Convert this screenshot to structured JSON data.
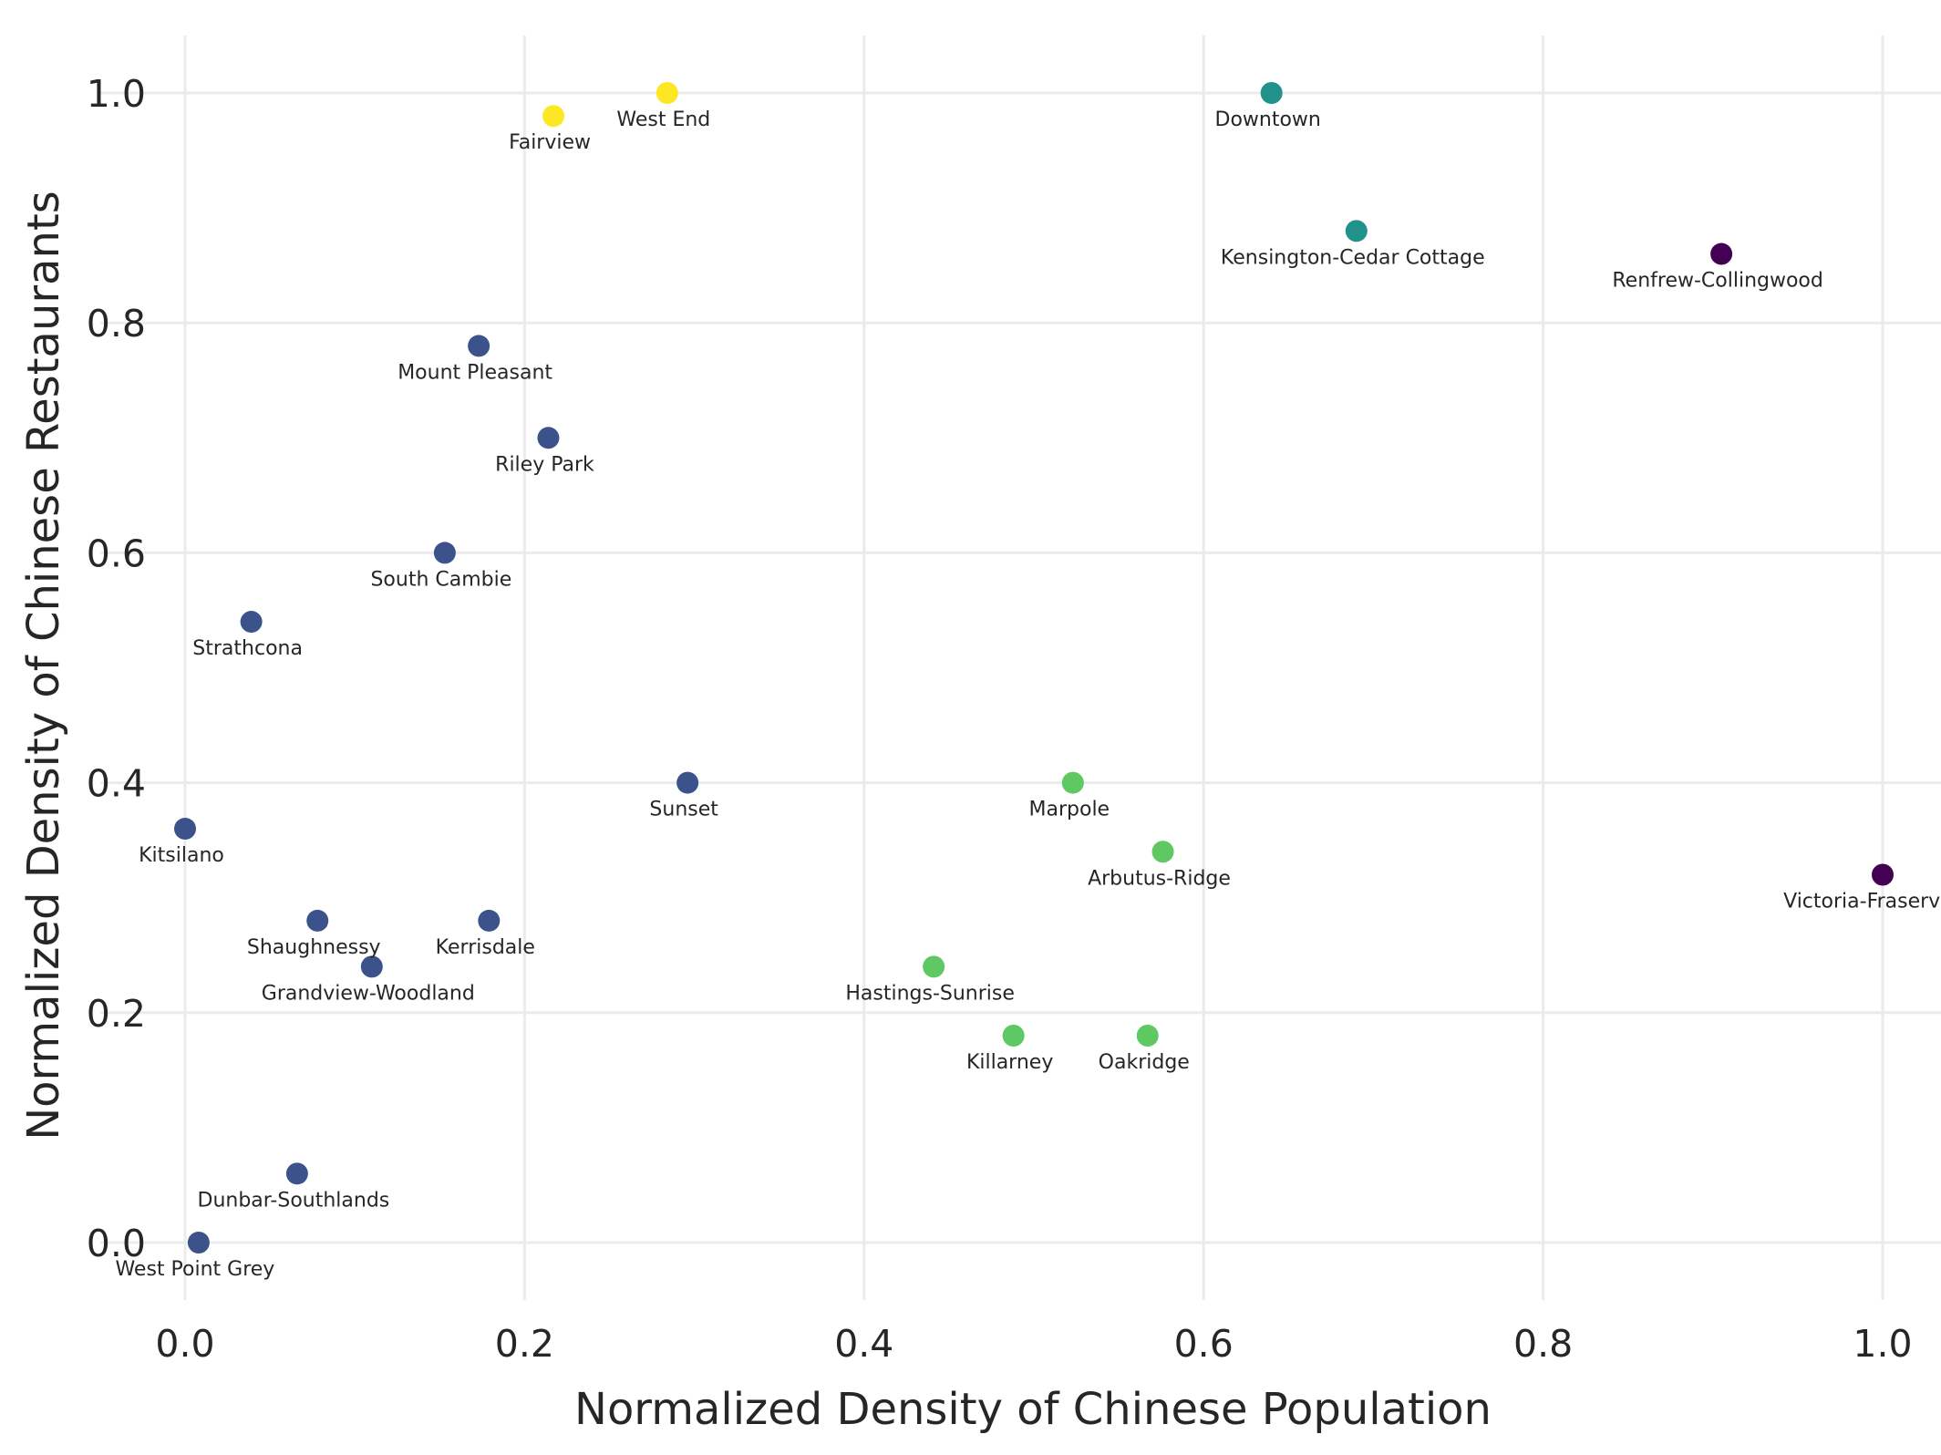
{
  "chart_data": {
    "type": "scatter",
    "title": "",
    "xlabel": "Normalized Density of Chinese Population",
    "ylabel": "Normalized Density of Chinese Restaurants",
    "xlim": [
      -0.05,
      1.05
    ],
    "ylim": [
      -0.05,
      1.05
    ],
    "xticks": [
      0.0,
      0.2,
      0.4,
      0.6,
      0.8,
      1.0
    ],
    "yticks": [
      0.0,
      0.2,
      0.4,
      0.6,
      0.8,
      1.0
    ],
    "xtick_labels": [
      "0.0",
      "0.2",
      "0.4",
      "0.6",
      "0.8",
      "1.0"
    ],
    "ytick_labels": [
      "0.0",
      "0.2",
      "0.4",
      "0.6",
      "0.8",
      "1.0"
    ],
    "grid": true,
    "legend": "none",
    "cluster_colors": [
      "#440154",
      "#3b528b",
      "#21918c",
      "#5ec962",
      "#fde725"
    ],
    "points": [
      {
        "label": "West End",
        "x": 0.284,
        "y": 1.0,
        "cluster": 4
      },
      {
        "label": "Fairview",
        "x": 0.217,
        "y": 0.98,
        "cluster": 4
      },
      {
        "label": "Downtown",
        "x": 0.64,
        "y": 1.0,
        "cluster": 2
      },
      {
        "label": "Kensington-Cedar Cottage",
        "x": 0.69,
        "y": 0.88,
        "cluster": 2
      },
      {
        "label": "Renfrew-Collingwood",
        "x": 0.905,
        "y": 0.86,
        "cluster": 0
      },
      {
        "label": "Victoria-Fraserview",
        "x": 1.0,
        "y": 0.32,
        "cluster": 0
      },
      {
        "label": "Mount Pleasant",
        "x": 0.173,
        "y": 0.78,
        "cluster": 1
      },
      {
        "label": "Riley Park",
        "x": 0.214,
        "y": 0.7,
        "cluster": 1
      },
      {
        "label": "South Cambie",
        "x": 0.153,
        "y": 0.6,
        "cluster": 1
      },
      {
        "label": "Strathcona",
        "x": 0.039,
        "y": 0.54,
        "cluster": 1
      },
      {
        "label": "Sunset",
        "x": 0.296,
        "y": 0.4,
        "cluster": 1
      },
      {
        "label": "Kitsilano",
        "x": 0.0,
        "y": 0.36,
        "cluster": 1
      },
      {
        "label": "Shaughnessy",
        "x": 0.078,
        "y": 0.28,
        "cluster": 1
      },
      {
        "label": "Kerrisdale",
        "x": 0.179,
        "y": 0.28,
        "cluster": 1
      },
      {
        "label": "Grandview-Woodland",
        "x": 0.11,
        "y": 0.24,
        "cluster": 1
      },
      {
        "label": "Dunbar-Southlands",
        "x": 0.066,
        "y": 0.06,
        "cluster": 1
      },
      {
        "label": "West Point Grey",
        "x": 0.008,
        "y": 0.0,
        "cluster": 1
      },
      {
        "label": "Marpole",
        "x": 0.523,
        "y": 0.4,
        "cluster": 3
      },
      {
        "label": "Arbutus-Ridge",
        "x": 0.576,
        "y": 0.34,
        "cluster": 3
      },
      {
        "label": "Hastings-Sunrise",
        "x": 0.441,
        "y": 0.24,
        "cluster": 3
      },
      {
        "label": "Killarney",
        "x": 0.488,
        "y": 0.18,
        "cluster": 3
      },
      {
        "label": "Oakridge",
        "x": 0.567,
        "y": 0.18,
        "cluster": 3
      }
    ]
  }
}
